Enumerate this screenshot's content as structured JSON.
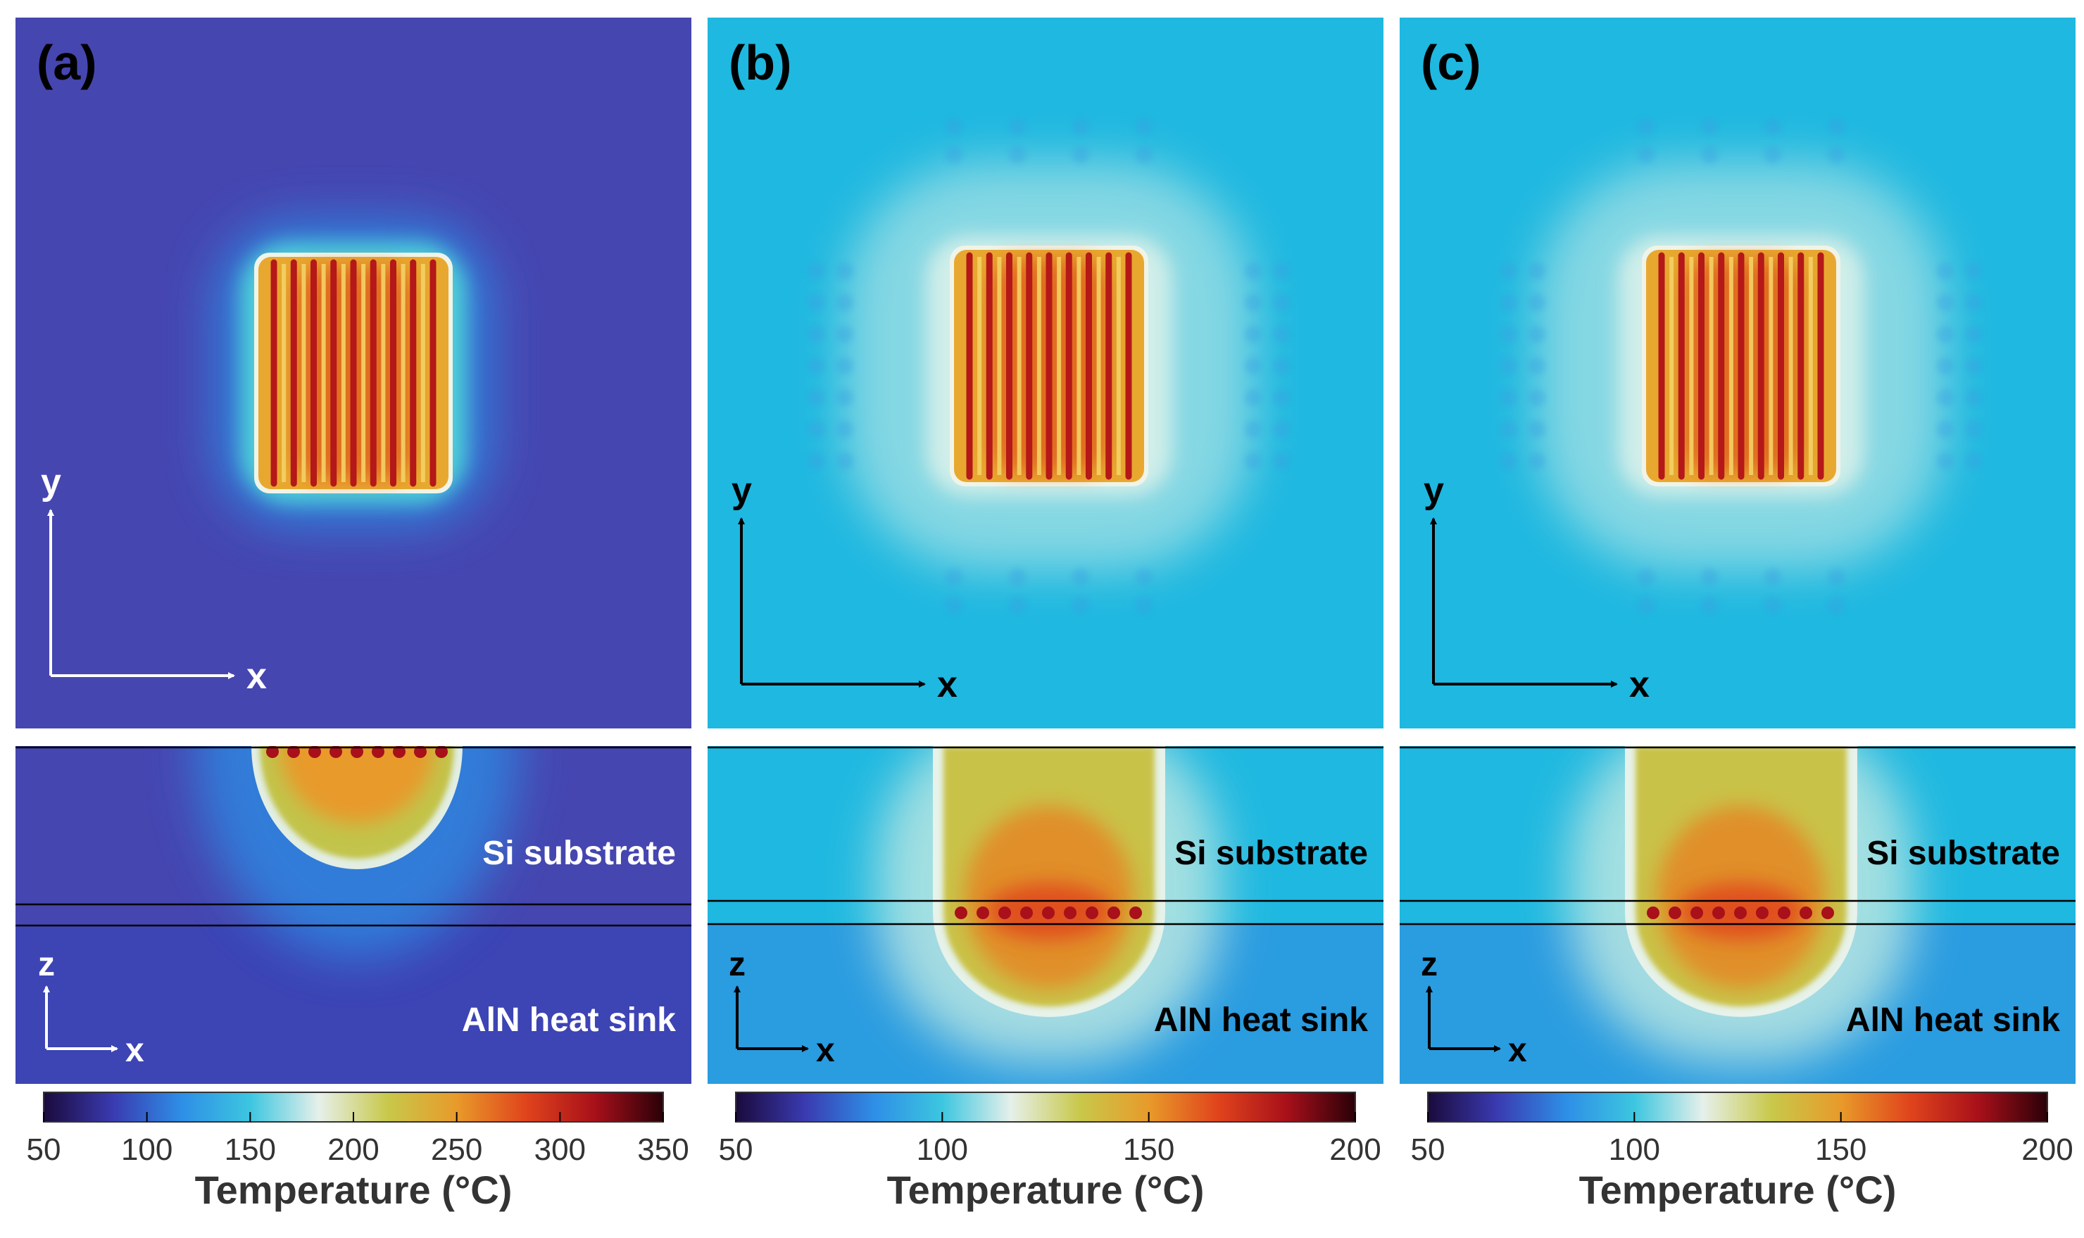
{
  "panels": [
    {
      "id": "a",
      "label": "(a)",
      "top_axes": {
        "vertical": "y",
        "horizontal": "x"
      },
      "bottom_axes": {
        "vertical": "z",
        "horizontal": "x"
      },
      "layer_substrate": "Si substrate",
      "layer_sink": "AlN heat sink",
      "colorbar": {
        "min": 50,
        "max": 350,
        "ticks": [
          "50",
          "100",
          "150",
          "200",
          "250",
          "300",
          "350"
        ]
      },
      "colorbar_title": "Temperature (°C)",
      "colors": {
        "background": "#4646b0",
        "sink": "#3d44b4",
        "axis": "#ffffff",
        "layer_text": "#ffffff"
      }
    },
    {
      "id": "b",
      "label": "(b)",
      "top_axes": {
        "vertical": "y",
        "horizontal": "x"
      },
      "bottom_axes": {
        "vertical": "z",
        "horizontal": "x"
      },
      "layer_substrate": "Si substrate",
      "layer_sink": "AlN heat sink",
      "colorbar": {
        "min": 50,
        "max": 200,
        "ticks": [
          "50",
          "100",
          "150",
          "200"
        ]
      },
      "colorbar_title": "Temperature (°C)",
      "colors": {
        "background": "#1fb8e0",
        "sink": "#2a9ce0",
        "axis": "#000000",
        "layer_text": "#000000"
      }
    },
    {
      "id": "c",
      "label": "(c)",
      "top_axes": {
        "vertical": "y",
        "horizontal": "x"
      },
      "bottom_axes": {
        "vertical": "z",
        "horizontal": "x"
      },
      "layer_substrate": "Si substrate",
      "layer_sink": "AlN heat sink",
      "colorbar": {
        "min": 50,
        "max": 200,
        "ticks": [
          "50",
          "100",
          "150",
          "200"
        ]
      },
      "colorbar_title": "Temperature (°C)",
      "colors": {
        "background": "#1fb8e0",
        "sink": "#2a9ce0",
        "axis": "#000000",
        "layer_text": "#000000"
      }
    }
  ],
  "colormap": [
    "#1a0a3c",
    "#3a3ab0",
    "#2e8ee6",
    "#3cc6e0",
    "#e6f0ea",
    "#c8c84a",
    "#e89a2a",
    "#e0441c",
    "#a8101a",
    "#2a0008"
  ]
}
